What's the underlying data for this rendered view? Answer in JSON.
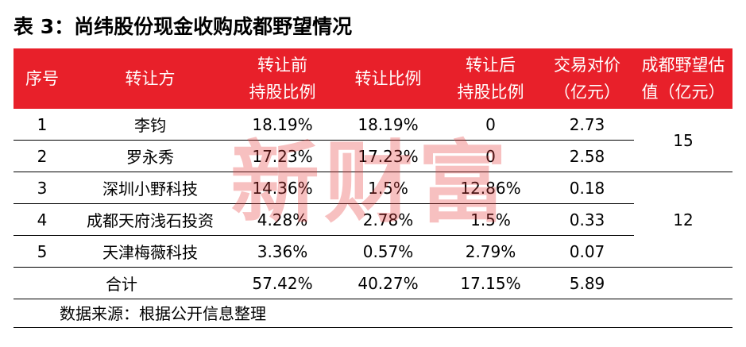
{
  "title": "表 3：尚纬股份现金收购成都野望情况",
  "watermark": "新财富",
  "headers": {
    "seq": "序号",
    "transferor": "转让方",
    "before_1": "转让前",
    "before_2": "持股比例",
    "ratio": "转让比例",
    "after_1": "转让后",
    "after_2": "持股比例",
    "price_1": "交易对价",
    "price_2": "（亿元）",
    "valuation_1": "成都野望估",
    "valuation_2": "值（亿元）"
  },
  "rows": [
    {
      "seq": "1",
      "name": "李钧",
      "before": "18.19%",
      "ratio": "18.19%",
      "after": "0",
      "price": "2.73"
    },
    {
      "seq": "2",
      "name": "罗永秀",
      "before": "17.23%",
      "ratio": "17.23%",
      "after": "0",
      "price": "2.58"
    },
    {
      "seq": "3",
      "name": "深圳小野科技",
      "before": "14.36%",
      "ratio": "1.5%",
      "after": "12.86%",
      "price": "0.18"
    },
    {
      "seq": "4",
      "name": "成都天府浅石投资",
      "before": "4.28%",
      "ratio": "2.78%",
      "after": "1.5%",
      "price": "0.33"
    },
    {
      "seq": "5",
      "name": "天津梅薇科技",
      "before": "3.36%",
      "ratio": "0.57%",
      "after": "2.79%",
      "price": "0.07"
    }
  ],
  "valuations": [
    "15",
    "12"
  ],
  "total": {
    "label": "合计",
    "before": "57.42%",
    "ratio": "40.27%",
    "after": "17.15%",
    "price": "5.89"
  },
  "source": "数据来源：根据公开信息整理",
  "colors": {
    "header_bg": "#e8202a",
    "header_text": "#ffffff",
    "watermark": "#e63c3c"
  }
}
